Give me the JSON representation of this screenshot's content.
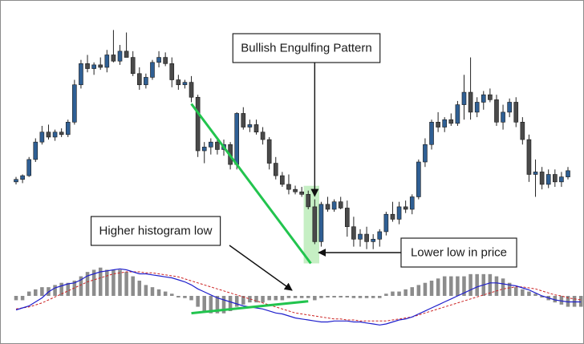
{
  "chart_data": {
    "type": "candlestick",
    "title": "",
    "colors": {
      "bull_candle": "#2f5f94",
      "bear_candle": "#4a4a4a",
      "wick": "#222222",
      "histogram": "#8c8c8c",
      "macd_line": "#1f1fcc",
      "signal_line": "#cc2222",
      "divergence_line": "#22c44e",
      "highlight": "#c6efc4",
      "callout_border": "#222222"
    },
    "price_range": [
      0,
      100
    ],
    "candles": [
      {
        "o": 40,
        "h": 44,
        "l": 38,
        "c": 42
      },
      {
        "o": 42,
        "h": 46,
        "l": 39,
        "c": 45
      },
      {
        "o": 45,
        "h": 60,
        "l": 44,
        "c": 58
      },
      {
        "o": 58,
        "h": 75,
        "l": 56,
        "c": 72
      },
      {
        "o": 72,
        "h": 85,
        "l": 70,
        "c": 80
      },
      {
        "o": 80,
        "h": 86,
        "l": 74,
        "c": 76
      },
      {
        "o": 76,
        "h": 82,
        "l": 73,
        "c": 80
      },
      {
        "o": 80,
        "h": 83,
        "l": 76,
        "c": 78
      },
      {
        "o": 78,
        "h": 90,
        "l": 76,
        "c": 88
      },
      {
        "o": 88,
        "h": 122,
        "l": 86,
        "c": 118
      },
      {
        "o": 118,
        "h": 138,
        "l": 115,
        "c": 135
      },
      {
        "o": 135,
        "h": 142,
        "l": 128,
        "c": 131
      },
      {
        "o": 131,
        "h": 136,
        "l": 126,
        "c": 134
      },
      {
        "o": 134,
        "h": 140,
        "l": 130,
        "c": 132
      },
      {
        "o": 132,
        "h": 146,
        "l": 128,
        "c": 142
      },
      {
        "o": 142,
        "h": 162,
        "l": 136,
        "c": 137
      },
      {
        "o": 137,
        "h": 150,
        "l": 134,
        "c": 145
      },
      {
        "o": 145,
        "h": 160,
        "l": 140,
        "c": 140
      },
      {
        "o": 140,
        "h": 145,
        "l": 125,
        "c": 127
      },
      {
        "o": 127,
        "h": 132,
        "l": 114,
        "c": 118
      },
      {
        "o": 118,
        "h": 127,
        "l": 115,
        "c": 124
      },
      {
        "o": 124,
        "h": 138,
        "l": 122,
        "c": 136
      },
      {
        "o": 136,
        "h": 145,
        "l": 132,
        "c": 140
      },
      {
        "o": 140,
        "h": 144,
        "l": 133,
        "c": 135
      },
      {
        "o": 135,
        "h": 140,
        "l": 116,
        "c": 122
      },
      {
        "o": 122,
        "h": 126,
        "l": 114,
        "c": 118
      },
      {
        "o": 118,
        "h": 122,
        "l": 115,
        "c": 120
      },
      {
        "o": 120,
        "h": 125,
        "l": 104,
        "c": 108
      },
      {
        "o": 108,
        "h": 110,
        "l": 60,
        "c": 65
      },
      {
        "o": 65,
        "h": 72,
        "l": 55,
        "c": 68
      },
      {
        "o": 68,
        "h": 75,
        "l": 62,
        "c": 72
      },
      {
        "o": 72,
        "h": 75,
        "l": 62,
        "c": 66
      },
      {
        "o": 66,
        "h": 74,
        "l": 61,
        "c": 70
      },
      {
        "o": 70,
        "h": 72,
        "l": 50,
        "c": 54
      },
      {
        "o": 54,
        "h": 96,
        "l": 50,
        "c": 95
      },
      {
        "o": 95,
        "h": 100,
        "l": 82,
        "c": 84
      },
      {
        "o": 84,
        "h": 90,
        "l": 80,
        "c": 86
      },
      {
        "o": 86,
        "h": 90,
        "l": 78,
        "c": 80
      },
      {
        "o": 80,
        "h": 84,
        "l": 70,
        "c": 74
      },
      {
        "o": 74,
        "h": 76,
        "l": 50,
        "c": 55
      },
      {
        "o": 55,
        "h": 60,
        "l": 42,
        "c": 45
      },
      {
        "o": 45,
        "h": 48,
        "l": 36,
        "c": 38
      },
      {
        "o": 38,
        "h": 46,
        "l": 30,
        "c": 34
      },
      {
        "o": 34,
        "h": 37,
        "l": 30,
        "c": 32
      },
      {
        "o": 32,
        "h": 36,
        "l": 28,
        "c": 30
      },
      {
        "o": 30,
        "h": 33,
        "l": 18,
        "c": 20
      },
      {
        "o": 20,
        "h": 26,
        "l": -10,
        "c": -8
      },
      {
        "o": -8,
        "h": 24,
        "l": -12,
        "c": 22
      },
      {
        "o": 22,
        "h": 28,
        "l": 16,
        "c": 18
      },
      {
        "o": 18,
        "h": 26,
        "l": 16,
        "c": 24
      },
      {
        "o": 24,
        "h": 28,
        "l": 18,
        "c": 19
      },
      {
        "o": 19,
        "h": 25,
        "l": -4,
        "c": 4
      },
      {
        "o": 4,
        "h": 12,
        "l": -12,
        "c": -6
      },
      {
        "o": -6,
        "h": 2,
        "l": -12,
        "c": -2
      },
      {
        "o": -2,
        "h": 4,
        "l": -14,
        "c": -8
      },
      {
        "o": -8,
        "h": -2,
        "l": -14,
        "c": -6
      },
      {
        "o": -6,
        "h": 2,
        "l": -12,
        "c": 0
      },
      {
        "o": 0,
        "h": 16,
        "l": -3,
        "c": 14
      },
      {
        "o": 14,
        "h": 24,
        "l": 8,
        "c": 10
      },
      {
        "o": 10,
        "h": 24,
        "l": 6,
        "c": 20
      },
      {
        "o": 20,
        "h": 25,
        "l": 15,
        "c": 18
      },
      {
        "o": 18,
        "h": 30,
        "l": 14,
        "c": 28
      },
      {
        "o": 28,
        "h": 58,
        "l": 26,
        "c": 56
      },
      {
        "o": 56,
        "h": 75,
        "l": 52,
        "c": 70
      },
      {
        "o": 70,
        "h": 90,
        "l": 66,
        "c": 88
      },
      {
        "o": 88,
        "h": 96,
        "l": 80,
        "c": 84
      },
      {
        "o": 84,
        "h": 92,
        "l": 80,
        "c": 90
      },
      {
        "o": 90,
        "h": 95,
        "l": 85,
        "c": 87
      },
      {
        "o": 87,
        "h": 105,
        "l": 85,
        "c": 102
      },
      {
        "o": 102,
        "h": 126,
        "l": 90,
        "c": 112
      },
      {
        "o": 112,
        "h": 140,
        "l": 90,
        "c": 96
      },
      {
        "o": 96,
        "h": 108,
        "l": 92,
        "c": 104
      },
      {
        "o": 104,
        "h": 113,
        "l": 98,
        "c": 110
      },
      {
        "o": 110,
        "h": 115,
        "l": 104,
        "c": 106
      },
      {
        "o": 106,
        "h": 110,
        "l": 85,
        "c": 88
      },
      {
        "o": 88,
        "h": 102,
        "l": 82,
        "c": 96
      },
      {
        "o": 96,
        "h": 107,
        "l": 92,
        "c": 104
      },
      {
        "o": 104,
        "h": 108,
        "l": 84,
        "c": 88
      },
      {
        "o": 88,
        "h": 92,
        "l": 70,
        "c": 74
      },
      {
        "o": 74,
        "h": 78,
        "l": 40,
        "c": 46
      },
      {
        "o": 46,
        "h": 58,
        "l": 28,
        "c": 48
      },
      {
        "o": 48,
        "h": 52,
        "l": 34,
        "c": 38
      },
      {
        "o": 38,
        "h": 50,
        "l": 35,
        "c": 46
      },
      {
        "o": 46,
        "h": 50,
        "l": 36,
        "c": 40
      },
      {
        "o": 40,
        "h": 48,
        "l": 36,
        "c": 44
      },
      {
        "o": 44,
        "h": 52,
        "l": 42,
        "c": 49
      }
    ],
    "histogram": [
      -2,
      -2,
      2,
      3,
      4,
      4,
      5,
      6,
      6,
      7,
      9,
      11,
      12,
      13,
      12,
      12,
      12,
      11,
      9,
      7,
      5,
      4,
      3,
      2,
      1,
      0,
      -1,
      -2,
      -5,
      -7,
      -8,
      -8,
      -8,
      -7,
      -5,
      -4,
      -3,
      -3,
      -3,
      -2,
      -2,
      -2,
      -1,
      -1,
      -1,
      -1,
      -2,
      -1,
      0,
      0,
      0,
      0,
      -1,
      -1,
      -1,
      -1,
      -1,
      1,
      2,
      2,
      3,
      4,
      5,
      6,
      7,
      8,
      9,
      9,
      9,
      9,
      10,
      10,
      10,
      10,
      9,
      8,
      6,
      4,
      3,
      2,
      1,
      0,
      -2,
      -3,
      -4,
      -5,
      -5,
      -5,
      -4
    ],
    "histogram_range": [
      -14,
      14
    ],
    "macd_line": [
      -14,
      -12,
      -10,
      -6,
      -2,
      4,
      8,
      10,
      12,
      13,
      16,
      20,
      22,
      24,
      25,
      26,
      27,
      26,
      24,
      22,
      22,
      21,
      20,
      19,
      18,
      16,
      14,
      11,
      7,
      4,
      1,
      -2,
      -4,
      -6,
      -8,
      -10,
      -11,
      -12,
      -13,
      -15,
      -17,
      -18,
      -20,
      -22,
      -23,
      -24,
      -25,
      -26,
      -26,
      -25,
      -25,
      -25,
      -26,
      -26,
      -27,
      -28,
      -29,
      -28,
      -26,
      -24,
      -23,
      -21,
      -18,
      -15,
      -12,
      -9,
      -6,
      -3,
      0,
      3,
      6,
      9,
      11,
      13,
      13,
      12,
      11,
      10,
      8,
      6,
      3,
      0,
      -2,
      -4,
      -5,
      -6,
      -6,
      -6
    ],
    "signal_line": [
      -13,
      -12,
      -11,
      -9,
      -7,
      -4,
      -1,
      2,
      5,
      8,
      11,
      14,
      16,
      18,
      20,
      22,
      23,
      24,
      24,
      24,
      23,
      23,
      22,
      21,
      20,
      19,
      17,
      15,
      13,
      11,
      9,
      7,
      5,
      3,
      1,
      -1,
      -3,
      -5,
      -7,
      -9,
      -11,
      -13,
      -15,
      -17,
      -18,
      -19,
      -20,
      -21,
      -22,
      -23,
      -23,
      -24,
      -24,
      -25,
      -25,
      -25,
      -25,
      -25,
      -24,
      -23,
      -22,
      -21,
      -19,
      -17,
      -15,
      -13,
      -11,
      -9,
      -7,
      -5,
      -3,
      -1,
      1,
      3,
      5,
      7,
      8,
      9,
      9,
      8,
      7,
      5,
      3,
      1,
      0,
      -2,
      -3,
      -4
    ],
    "indicator_range": [
      -32,
      32
    ],
    "annotations": [
      {
        "text": "Bullish Engulfing Pattern",
        "points_to_candle": 46
      },
      {
        "text": "Higher histogram low",
        "points_to": "histogram"
      },
      {
        "text": "Lower low in price",
        "points_to_candle": 46
      }
    ],
    "divergence": {
      "price_line": {
        "from_candle": 27,
        "to_candle": 45
      },
      "histogram_line": {
        "from_candle": 27,
        "to_candle": 45
      }
    },
    "highlight_candles": [
      45,
      46
    ]
  }
}
